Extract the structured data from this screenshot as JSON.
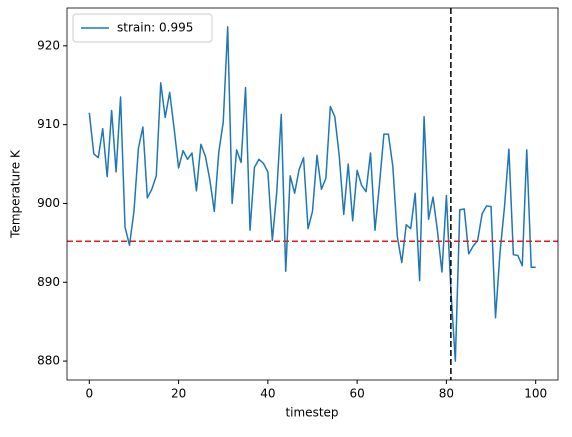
{
  "chart_data": {
    "type": "line",
    "x_label": "timestep",
    "y_label": "Temperature K",
    "x": [
      0,
      1,
      2,
      3,
      4,
      5,
      6,
      7,
      8,
      9,
      10,
      11,
      12,
      13,
      14,
      15,
      16,
      17,
      18,
      19,
      20,
      21,
      22,
      23,
      24,
      25,
      26,
      27,
      28,
      29,
      30,
      31,
      32,
      33,
      34,
      35,
      36,
      37,
      38,
      39,
      40,
      41,
      42,
      43,
      44,
      45,
      46,
      47,
      48,
      49,
      50,
      51,
      52,
      53,
      54,
      55,
      56,
      57,
      58,
      59,
      60,
      61,
      62,
      63,
      64,
      65,
      66,
      67,
      68,
      69,
      70,
      71,
      72,
      73,
      74,
      75,
      76,
      77,
      78,
      79,
      80,
      81,
      82,
      83,
      84,
      85,
      86,
      87,
      88,
      89,
      90,
      91,
      92,
      93,
      94,
      95,
      96,
      97,
      98,
      99,
      100
    ],
    "series": [
      {
        "name": "strain: 0.995",
        "color": "#1f77b4",
        "values": [
          911.5,
          906.3,
          905.8,
          909.5,
          903.4,
          911.8,
          904,
          913.5,
          897,
          894.7,
          899,
          907,
          909.7,
          900.7,
          901.8,
          903.5,
          915.3,
          910.9,
          914.1,
          909.5,
          904.5,
          906.7,
          905.6,
          906.4,
          901.6,
          907.5,
          906,
          903,
          899,
          906.5,
          910.3,
          922.4,
          900,
          906.8,
          905.2,
          914.7,
          896.6,
          904.6,
          905.6,
          905.1,
          904,
          895.3,
          901.5,
          911.3,
          891.4,
          903.5,
          901.3,
          904.3,
          905.8,
          896.8,
          899,
          906.1,
          901.8,
          903.2,
          912.3,
          911,
          906,
          898.6,
          905,
          897.8,
          904.2,
          902.3,
          901.5,
          906.4,
          896.6,
          902.4,
          908.8,
          908.8,
          904.7,
          895.8,
          892.5,
          897.3,
          896.8,
          901.3,
          890.2,
          911,
          898,
          900.8,
          896.5,
          891.3,
          901,
          889,
          880,
          899.2,
          899.3,
          893.6,
          894.6,
          895.3,
          898.7,
          899.7,
          899.6,
          885.5,
          893.7,
          899.5,
          906.9,
          893.5,
          893.4,
          892.1,
          906.8,
          891.9,
          891.9
        ]
      }
    ],
    "hline": {
      "y": 895.2,
      "color": "#e41a1c"
    },
    "vline": {
      "x": 81,
      "color": "#000000"
    },
    "xlim": [
      -5,
      105
    ],
    "ylim": [
      877.6,
      924.8
    ],
    "xticks": [
      0,
      20,
      40,
      60,
      80,
      100
    ],
    "yticks": [
      880,
      890,
      900,
      910,
      920
    ],
    "legend": "upper left"
  }
}
